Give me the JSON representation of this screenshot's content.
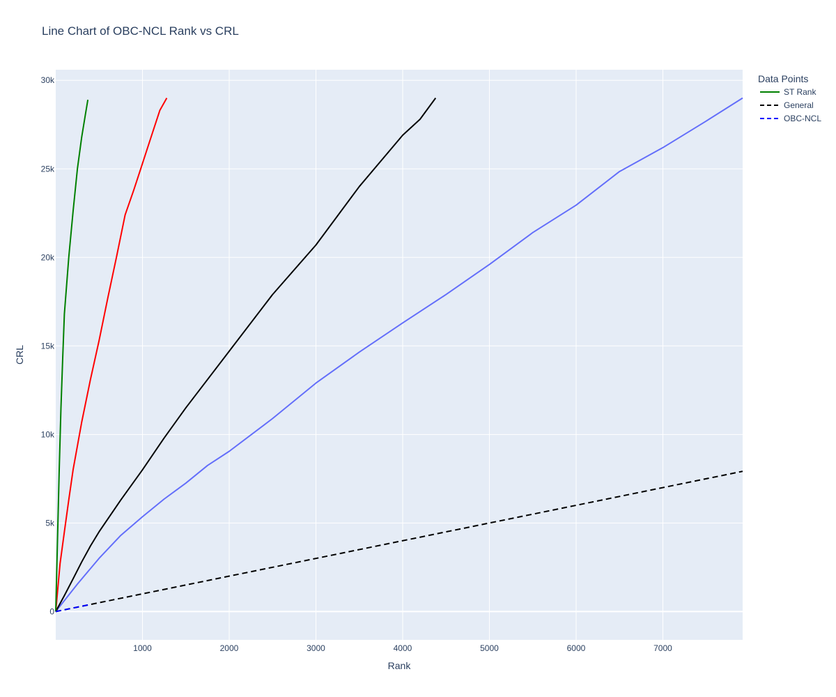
{
  "chart_data": {
    "type": "line",
    "title": "Line Chart of OBC-NCL Rank vs CRL",
    "xlabel": "Rank",
    "ylabel": "CRL",
    "xlim": [
      0,
      7920
    ],
    "ylim": [
      -1600,
      30600
    ],
    "x_ticks": [
      {
        "value": 1000,
        "label": "1000"
      },
      {
        "value": 2000,
        "label": "2000"
      },
      {
        "value": 3000,
        "label": "3000"
      },
      {
        "value": 4000,
        "label": "4000"
      },
      {
        "value": 5000,
        "label": "5000"
      },
      {
        "value": 6000,
        "label": "6000"
      },
      {
        "value": 7000,
        "label": "7000"
      }
    ],
    "y_ticks": [
      {
        "value": 0,
        "label": "0"
      },
      {
        "value": 5000,
        "label": "5k"
      },
      {
        "value": 10000,
        "label": "10k"
      },
      {
        "value": 15000,
        "label": "15k"
      },
      {
        "value": 20000,
        "label": "20k"
      },
      {
        "value": 25000,
        "label": "25k"
      },
      {
        "value": 30000,
        "label": "30k"
      }
    ],
    "grid": true,
    "legend_title": "Data Points",
    "legend_position": "top-right",
    "plot_bg": "#e5ecf6",
    "series": [
      {
        "name": "",
        "color": "#636efa",
        "dash": "solid",
        "x": [
          0,
          250,
          500,
          750,
          1000,
          1250,
          1500,
          1750,
          2000,
          2500,
          3000,
          3500,
          4000,
          4500,
          5000,
          5500,
          6000,
          6500,
          7000,
          7500,
          7920
        ],
        "y": [
          0,
          1550,
          3000,
          4300,
          5350,
          6350,
          7250,
          8250,
          9050,
          10900,
          12900,
          14650,
          16300,
          17900,
          19600,
          21400,
          22950,
          24850,
          26200,
          27700,
          29000
        ]
      },
      {
        "name": "",
        "color": "#000000",
        "dash": "solid",
        "x": [
          0,
          100,
          200,
          300,
          400,
          500,
          750,
          1000,
          1250,
          1500,
          2000,
          2500,
          3000,
          3500,
          4000,
          4200,
          4380
        ],
        "y": [
          0,
          900,
          1850,
          2800,
          3700,
          4500,
          6300,
          8000,
          9800,
          11500,
          14700,
          17900,
          20700,
          24000,
          26900,
          27800,
          29000
        ]
      },
      {
        "name": "",
        "color": "#ff0000",
        "dash": "solid",
        "x": [
          0,
          50,
          100,
          150,
          200,
          300,
          400,
          500,
          600,
          700,
          800,
          900,
          1000,
          1100,
          1200,
          1280
        ],
        "y": [
          0,
          2700,
          4500,
          6300,
          8000,
          10700,
          13100,
          15300,
          17700,
          20000,
          22400,
          23800,
          25300,
          26800,
          28300,
          29000
        ]
      },
      {
        "name": "ST Rank",
        "color": "#008000",
        "dash": "solid",
        "x": [
          0,
          20,
          40,
          60,
          80,
          100,
          150,
          200,
          250,
          300,
          340,
          370
        ],
        "y": [
          0,
          4000,
          8000,
          11500,
          14300,
          16800,
          20000,
          22600,
          25000,
          26800,
          28000,
          28900
        ]
      },
      {
        "name": "General",
        "color": "#000000",
        "dash": "dash",
        "x": [
          0,
          7920
        ],
        "y": [
          0,
          7920
        ]
      },
      {
        "name": "OBC-NCL",
        "color": "#0000ff",
        "dash": "dash",
        "x": [
          0,
          370
        ],
        "y": [
          0,
          370
        ]
      }
    ]
  }
}
